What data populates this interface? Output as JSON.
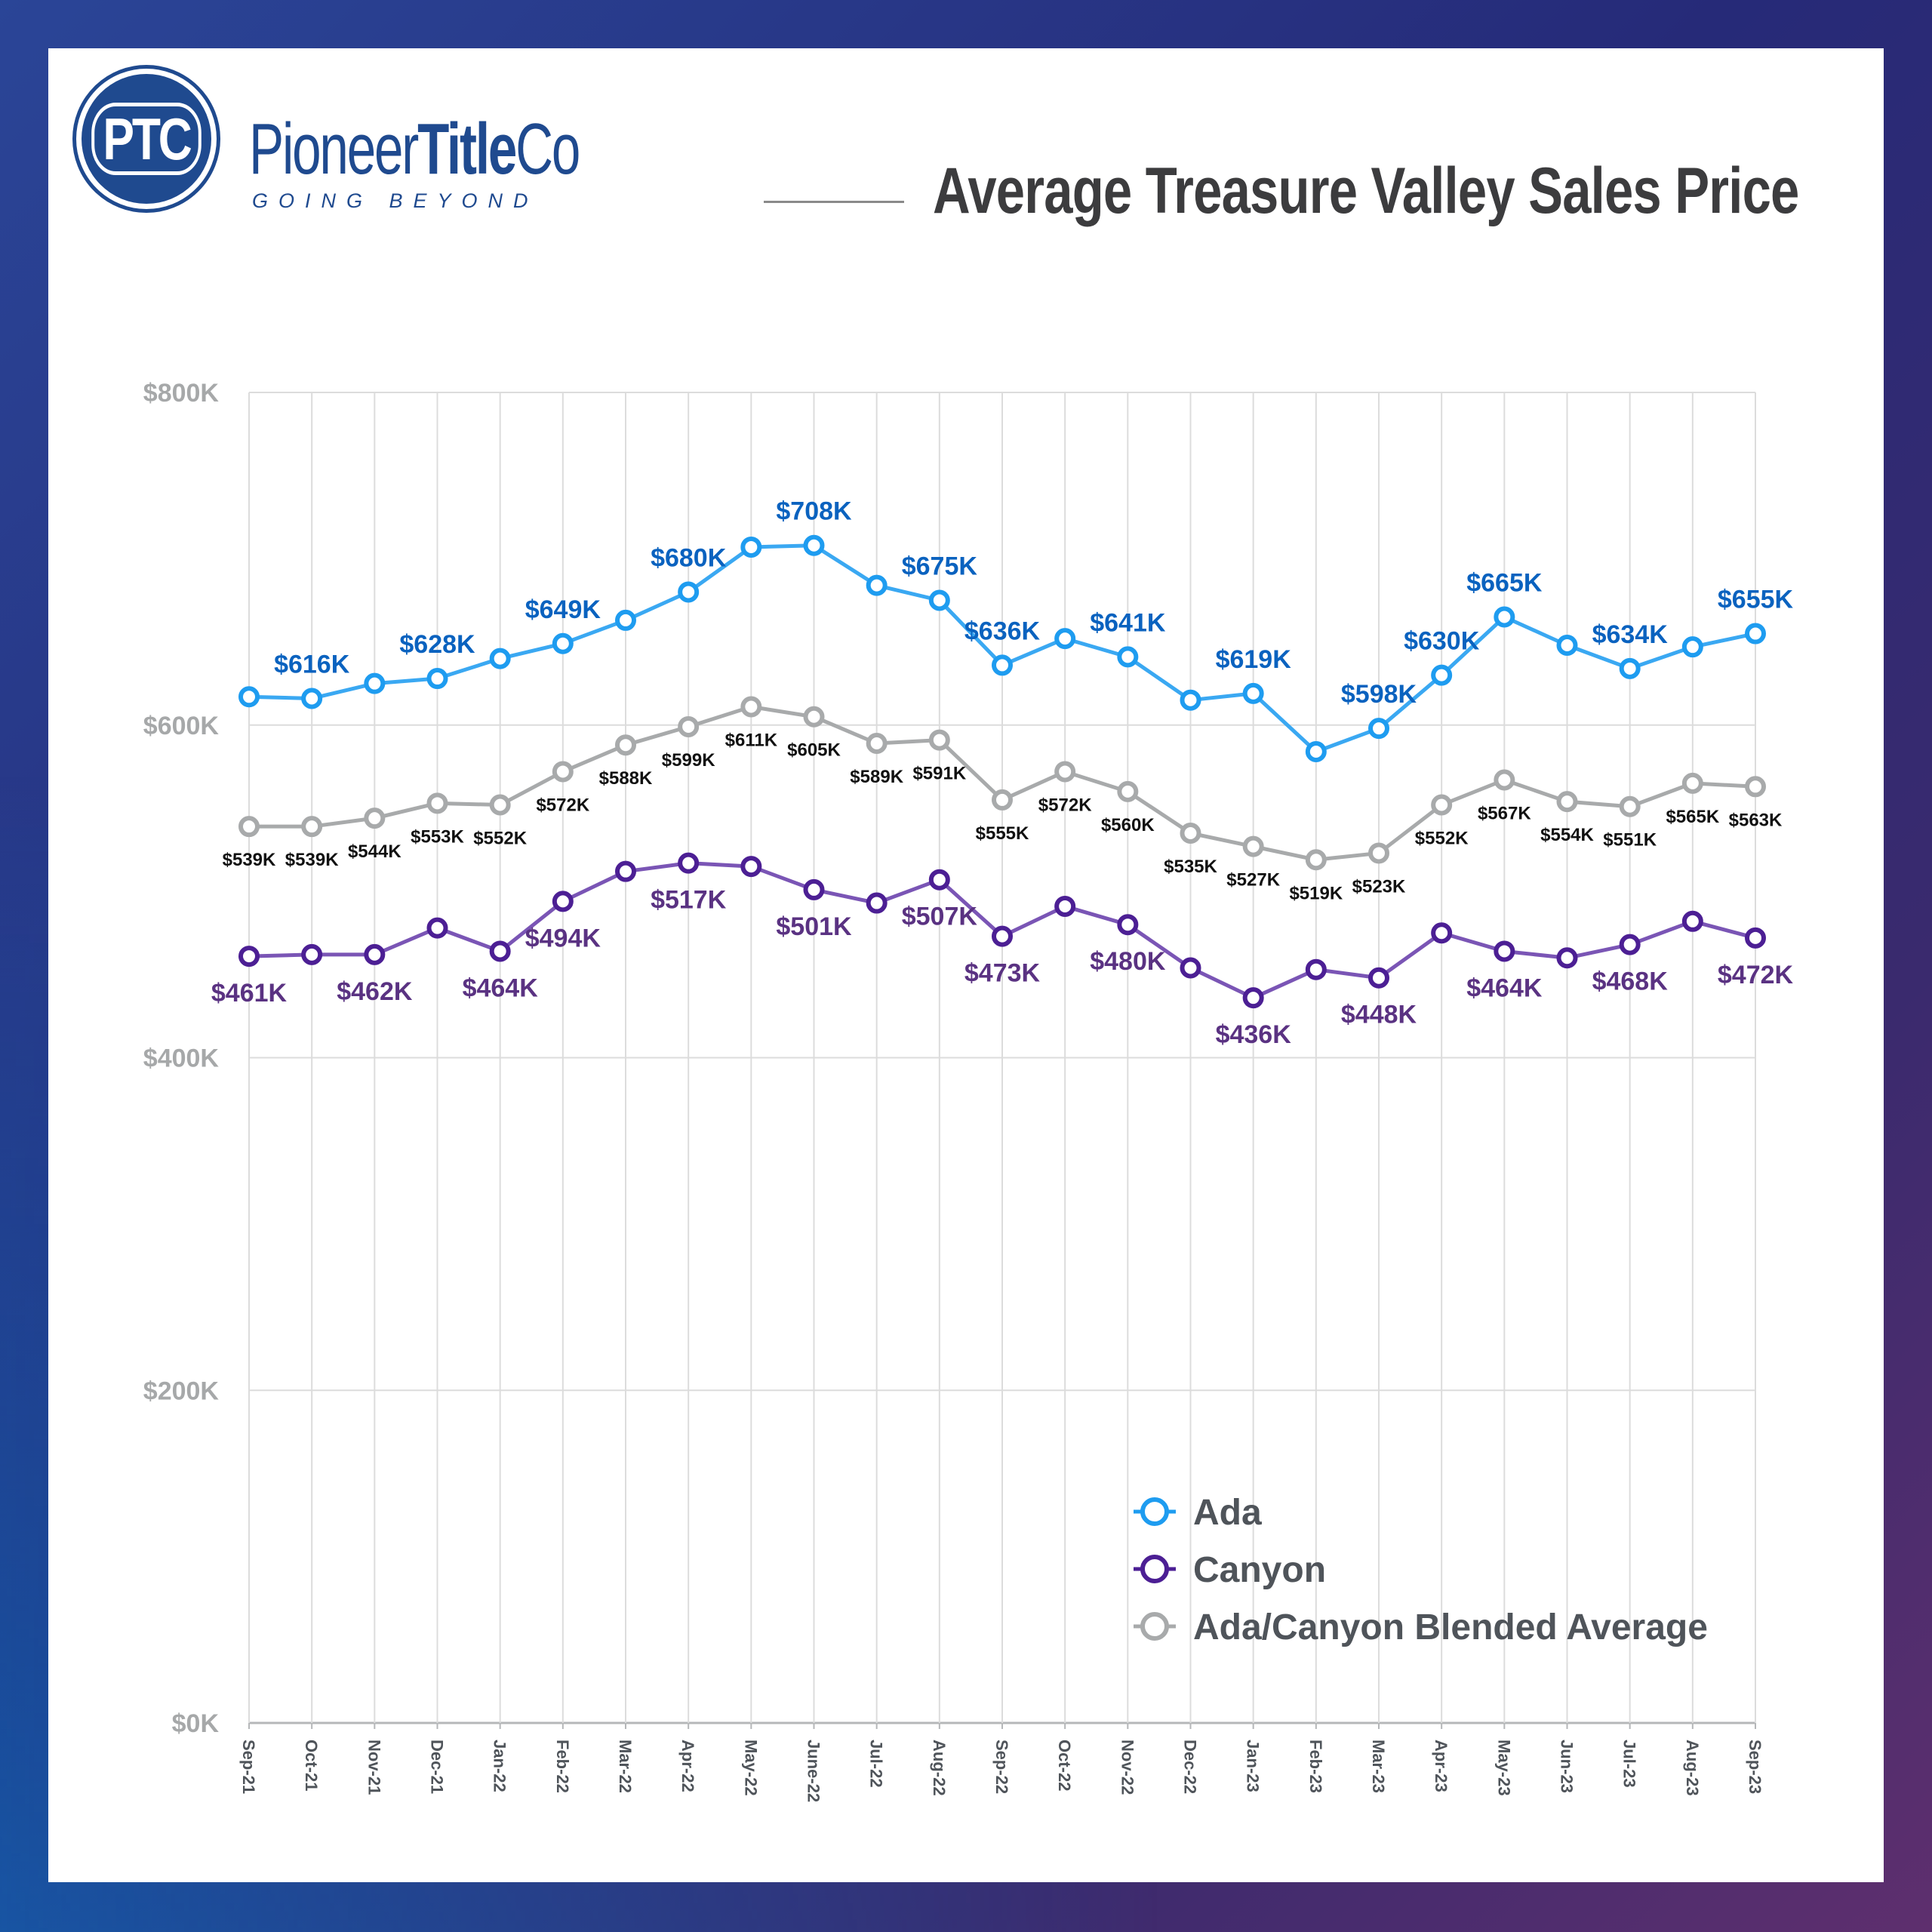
{
  "brand": {
    "logo_monogram": "PTC",
    "name_light_1": "Pioneer",
    "name_bold": "Title",
    "name_light_2": "Co",
    "tagline": "GOING BEYOND",
    "color": "#1f4a8f"
  },
  "header": {
    "title": "Average Treasure Valley Sales Price"
  },
  "chart_data": {
    "type": "line",
    "title": "Average Treasure Valley Sales Price",
    "xlabel": "",
    "ylabel": "",
    "ylim": [
      0,
      800
    ],
    "y_unit": "$K",
    "y_ticks": [
      0,
      200,
      400,
      600,
      800
    ],
    "y_tick_labels": [
      "$0K",
      "$200K",
      "$400K",
      "$600K",
      "$800K"
    ],
    "grid": true,
    "legend_position": "bottom-right",
    "categories": [
      "Sep-21",
      "Oct-21",
      "Nov-21",
      "Dec-21",
      "Jan-22",
      "Feb-22",
      "Mar-22",
      "Apr-22",
      "May-22",
      "June-22",
      "Jul-22",
      "Aug-22",
      "Sep-22",
      "Oct-22",
      "Nov-22",
      "Dec-22",
      "Jan-23",
      "Feb-23",
      "Mar-23",
      "Apr-23",
      "May-23",
      "Jun-23",
      "Jul-23",
      "Aug-23",
      "Sep-23"
    ],
    "series": [
      {
        "name": "Ada",
        "color": "#1e9cf0",
        "label_color": "#0a62bf",
        "label_position": "above",
        "values": [
          617,
          616,
          625,
          628,
          640,
          649,
          663,
          680,
          707,
          708,
          684,
          675,
          636,
          652,
          641,
          615,
          619,
          584,
          598,
          630,
          665,
          648,
          634,
          647,
          655
        ],
        "data_labels": [
          null,
          "$616K",
          null,
          "$628K",
          null,
          "$649K",
          null,
          "$680K",
          null,
          "$708K",
          null,
          "$675K",
          "$636K",
          null,
          "$641K",
          null,
          "$619K",
          null,
          "$598K",
          "$630K",
          "$665K",
          null,
          "$634K",
          null,
          "$655K"
        ]
      },
      {
        "name": "Canyon",
        "color": "#4c1f94",
        "label_color": "#5a3282",
        "label_position": "below",
        "values": [
          461,
          462,
          462,
          478,
          464,
          494,
          512,
          517,
          515,
          501,
          493,
          507,
          473,
          491,
          480,
          454,
          436,
          453,
          448,
          475,
          464,
          460,
          468,
          482,
          472
        ],
        "data_labels": [
          "$461K",
          null,
          "$462K",
          null,
          "$464K",
          "$494K",
          null,
          "$517K",
          null,
          "$501K",
          null,
          "$507K",
          "$473K",
          null,
          "$480K",
          null,
          "$436K",
          null,
          "$448K",
          null,
          "$464K",
          null,
          "$468K",
          null,
          "$472K"
        ]
      },
      {
        "name": "Ada/Canyon Blended Average",
        "color": "#a8aaab",
        "label_color": "#111111",
        "label_position": "below",
        "values": [
          539,
          539,
          544,
          553,
          552,
          572,
          588,
          599,
          611,
          605,
          589,
          591,
          555,
          572,
          560,
          535,
          527,
          519,
          523,
          552,
          567,
          554,
          551,
          565,
          563
        ],
        "data_labels": [
          "$539K",
          "$539K",
          "$544K",
          "$553K",
          "$552K",
          "$572K",
          "$588K",
          "$599K",
          "$611K",
          "$605K",
          "$589K",
          "$591K",
          "$555K",
          "$572K",
          "$560K",
          "$535K",
          "$527K",
          "$519K",
          "$523K",
          "$552K",
          "$567K",
          "$554K",
          "$551K",
          "$565K",
          "$563K"
        ]
      }
    ]
  }
}
